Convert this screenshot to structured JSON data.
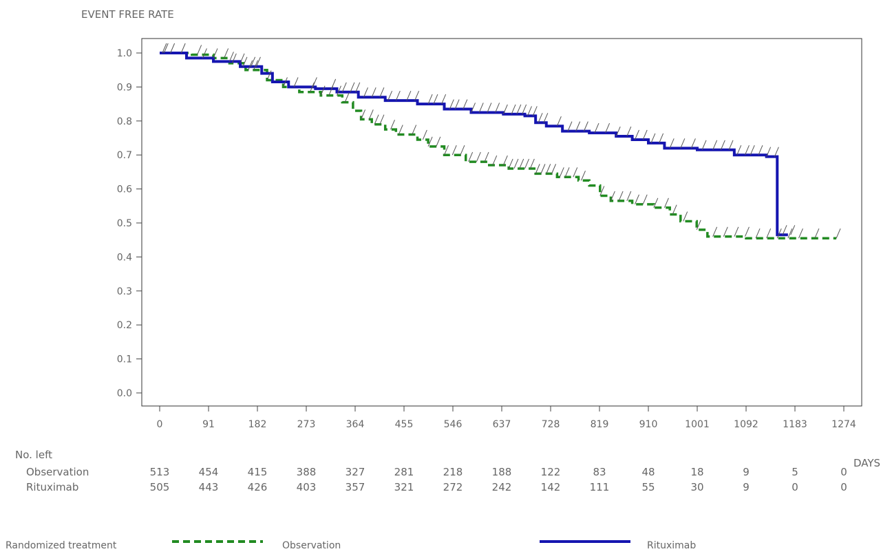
{
  "chart_data": {
    "type": "line",
    "title": "EVENT FREE RATE",
    "xlabel": "DAYS",
    "ylabel": "EVENT FREE RATE",
    "x_ticks": [
      0,
      91,
      182,
      273,
      364,
      455,
      546,
      637,
      728,
      819,
      910,
      1001,
      1092,
      1183,
      1274
    ],
    "y_ticks": [
      "0.0",
      "0.1",
      "0.2",
      "0.3",
      "0.4",
      "0.5",
      "0.6",
      "0.7",
      "0.8",
      "0.9",
      "1.0"
    ],
    "xlim": [
      0,
      1274
    ],
    "ylim": [
      0,
      1.04
    ],
    "grid": false,
    "legend_position": "bottom",
    "legend_title": "Randomized treatment",
    "series": [
      {
        "name": "Observation",
        "color": "#228B22",
        "style": "dashed-step",
        "x": [
          0,
          60,
          100,
          130,
          160,
          200,
          230,
          260,
          300,
          340,
          360,
          375,
          395,
          420,
          440,
          480,
          500,
          530,
          570,
          610,
          650,
          700,
          740,
          780,
          800,
          820,
          840,
          880,
          920,
          950,
          970,
          1000,
          1020,
          1092,
          1170,
          1260
        ],
        "y": [
          1.0,
          0.995,
          0.985,
          0.97,
          0.95,
          0.92,
          0.9,
          0.885,
          0.875,
          0.855,
          0.83,
          0.805,
          0.79,
          0.775,
          0.76,
          0.745,
          0.725,
          0.7,
          0.68,
          0.67,
          0.66,
          0.645,
          0.635,
          0.625,
          0.61,
          0.58,
          0.565,
          0.555,
          0.545,
          0.525,
          0.505,
          0.48,
          0.46,
          0.455,
          0.455,
          0.455
        ],
        "censor_x": [
          5,
          40,
          70,
          100,
          120,
          135,
          150,
          165,
          175,
          200,
          230,
          280,
          300,
          315,
          330,
          345,
          375,
          390,
          400,
          410,
          430,
          445,
          470,
          490,
          500,
          515,
          530,
          545,
          560,
          575,
          590,
          605,
          620,
          640,
          650,
          660,
          670,
          680,
          690,
          700,
          710,
          720,
          730,
          745,
          755,
          770,
          785,
          820,
          840,
          855,
          870,
          885,
          900,
          920,
          940,
          955,
          975,
          1000,
          1030,
          1050,
          1070,
          1090,
          1110,
          1130,
          1150,
          1170,
          1190,
          1220,
          1260
        ]
      },
      {
        "name": "Rituximab",
        "color": "#1515B0",
        "style": "solid-step",
        "x": [
          0,
          50,
          100,
          150,
          190,
          210,
          240,
          290,
          330,
          370,
          420,
          480,
          530,
          580,
          640,
          680,
          700,
          720,
          750,
          800,
          850,
          880,
          910,
          940,
          1001,
          1070,
          1130,
          1150,
          1170
        ],
        "y": [
          1.0,
          0.985,
          0.975,
          0.96,
          0.94,
          0.915,
          0.9,
          0.895,
          0.885,
          0.87,
          0.86,
          0.85,
          0.835,
          0.825,
          0.82,
          0.815,
          0.795,
          0.785,
          0.77,
          0.765,
          0.755,
          0.745,
          0.735,
          0.72,
          0.715,
          0.7,
          0.695,
          0.465,
          0.465
        ],
        "censor_x": [
          8,
          20,
          80,
          130,
          155,
          170,
          180,
          250,
          285,
          320,
          340,
          355,
          365,
          380,
          395,
          410,
          425,
          440,
          460,
          475,
          500,
          510,
          525,
          540,
          550,
          565,
          580,
          595,
          610,
          625,
          640,
          655,
          665,
          675,
          685,
          695,
          705,
          715,
          740,
          760,
          775,
          790,
          810,
          830,
          850,
          870,
          885,
          900,
          915,
          930,
          950,
          970,
          990,
          1010,
          1030,
          1045,
          1060,
          1075,
          1090,
          1100,
          1115,
          1130,
          1145,
          1160,
          1175
        ]
      }
    ],
    "risk_table": {
      "header": "No. left",
      "rows": [
        {
          "label": "Observation",
          "values": [
            "513",
            "454",
            "415",
            "388",
            "327",
            "281",
            "218",
            "188",
            "122",
            "83",
            "48",
            "18",
            "9",
            "5",
            "0"
          ]
        },
        {
          "label": "Rituximab",
          "values": [
            "505",
            "443",
            "426",
            "403",
            "357",
            "321",
            "272",
            "242",
            "142",
            "111",
            "55",
            "30",
            "9",
            "0",
            "0"
          ]
        }
      ]
    }
  }
}
